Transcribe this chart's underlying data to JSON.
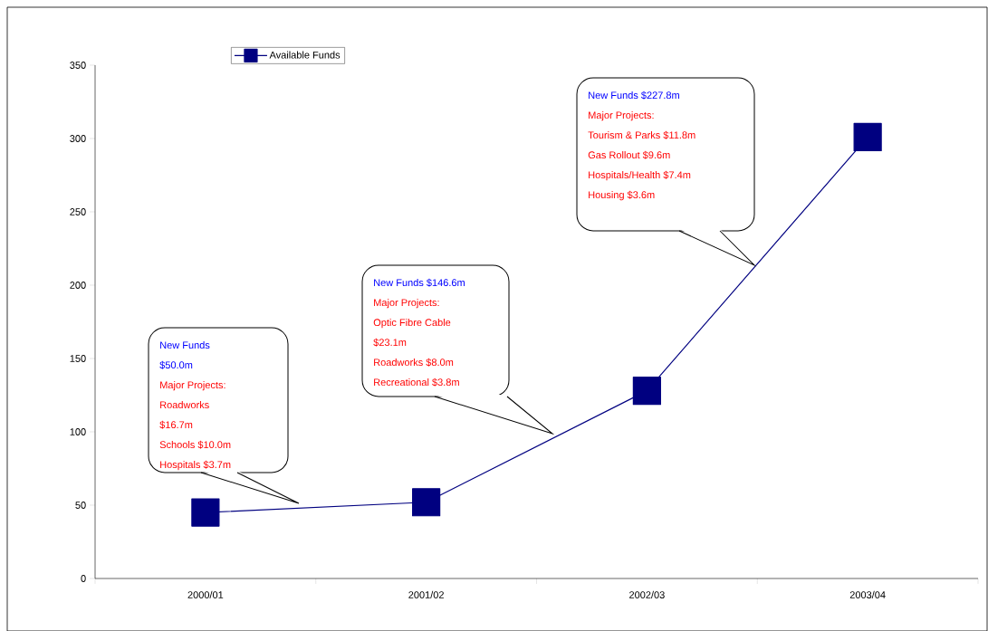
{
  "chart_data": {
    "type": "line",
    "categories": [
      "2000/01",
      "2001/02",
      "2002/03",
      "2003/04"
    ],
    "series": [
      {
        "name": "Available Funds",
        "color": "#000080",
        "values": [
          45,
          52,
          128,
          301
        ]
      }
    ],
    "ylim": [
      0,
      350
    ],
    "yticks": [
      0,
      50,
      100,
      150,
      200,
      250,
      300,
      350
    ],
    "grid": false,
    "legend": "top left",
    "marker": "square",
    "line_style": "solid",
    "annotations": [
      "New Funds",
      "$50.0m",
      "Major Projects:",
      "Roadworks",
      "$16.7m",
      "Schools $10.0m",
      "Hospitals $3.7m",
      "New Funds $146.6m",
      "Major Projects:",
      "Optic Fibre Cable",
      "$23.1m",
      "Roadworks $8.0m",
      "Recreational $3.8m",
      "New Funds $227.8m",
      "Major Projects:",
      "Tourism & Parks $11.8m",
      "Gas Rollout $9.6m",
      "Hospitals/Health $7.4m",
      "Housing $3.6m"
    ]
  }
}
